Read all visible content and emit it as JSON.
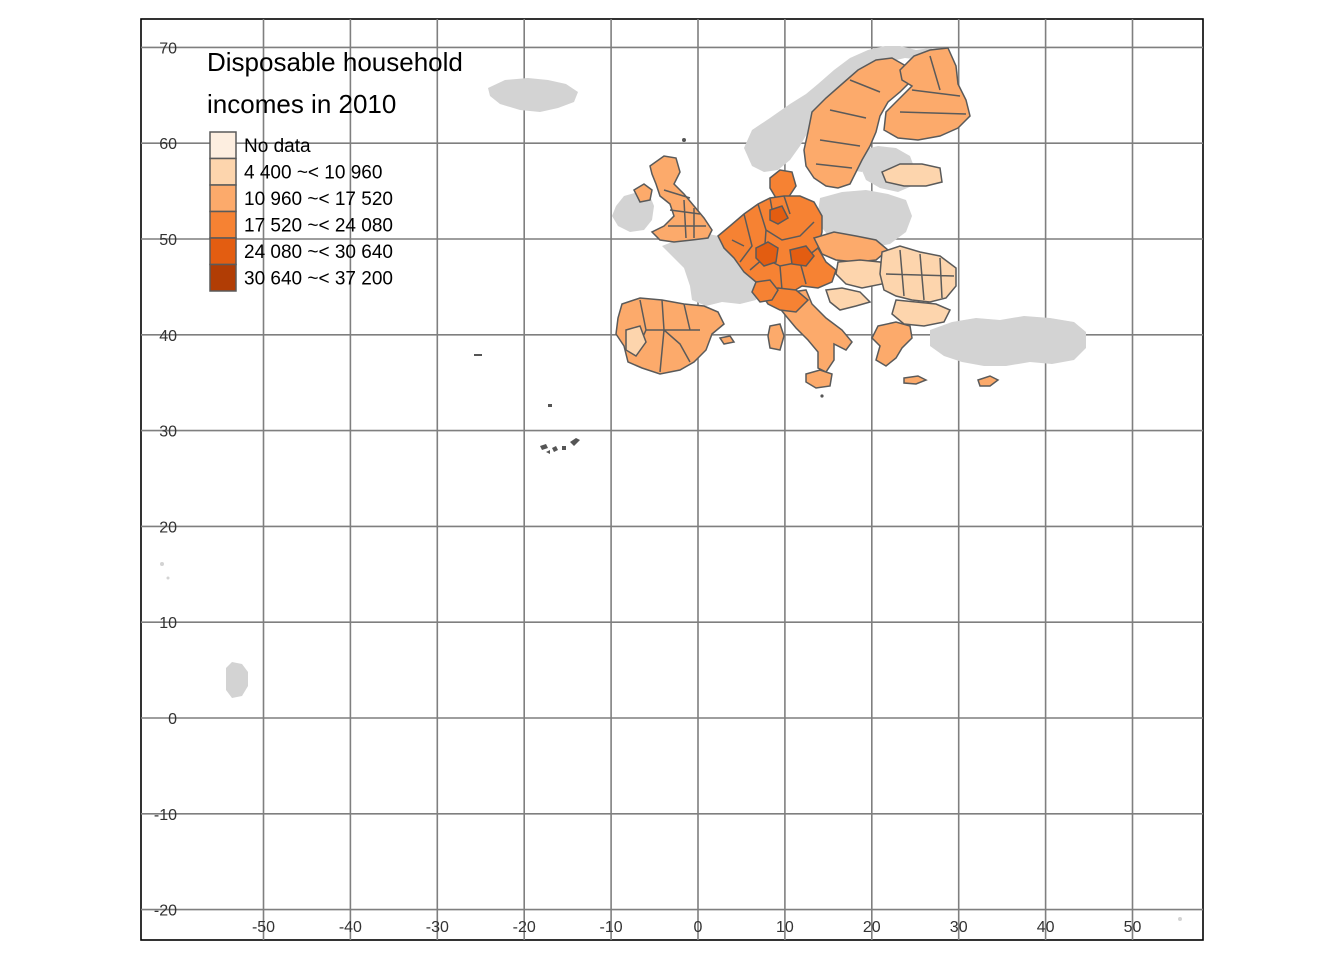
{
  "map": {
    "legend": {
      "title_line1": "Disposable household",
      "title_line2": "incomes in 2010",
      "items": [
        {
          "label": "No data",
          "color": "#fdeee0"
        },
        {
          "label": "4 400 ~< 10 960",
          "color": "#fdd5ad"
        },
        {
          "label": "10 960 ~< 17 520",
          "color": "#fcaa6b"
        },
        {
          "label": "17 520 ~< 24 080",
          "color": "#f68233"
        },
        {
          "label": "24 080 ~< 30 640",
          "color": "#e35d11"
        },
        {
          "label": "30 640 ~< 37 200",
          "color": "#b13d05"
        }
      ]
    },
    "x_ticks": [
      "-50",
      "-40",
      "-30",
      "-20",
      "-10",
      "0",
      "10",
      "20",
      "30",
      "40",
      "50"
    ],
    "y_ticks": [
      "70",
      "60",
      "50",
      "40",
      "30",
      "20",
      "10",
      "0",
      "-10",
      "-20"
    ],
    "x_tick_values": [
      -50,
      -40,
      -30,
      -20,
      -10,
      0,
      10,
      20,
      30,
      40,
      50
    ],
    "y_tick_values": [
      70,
      60,
      50,
      40,
      30,
      20,
      10,
      0,
      -10,
      -20
    ],
    "colors": {
      "grid": "#7f7f7f",
      "no_data_land": "#d3d3d3",
      "border": "#5a5a5a"
    }
  }
}
